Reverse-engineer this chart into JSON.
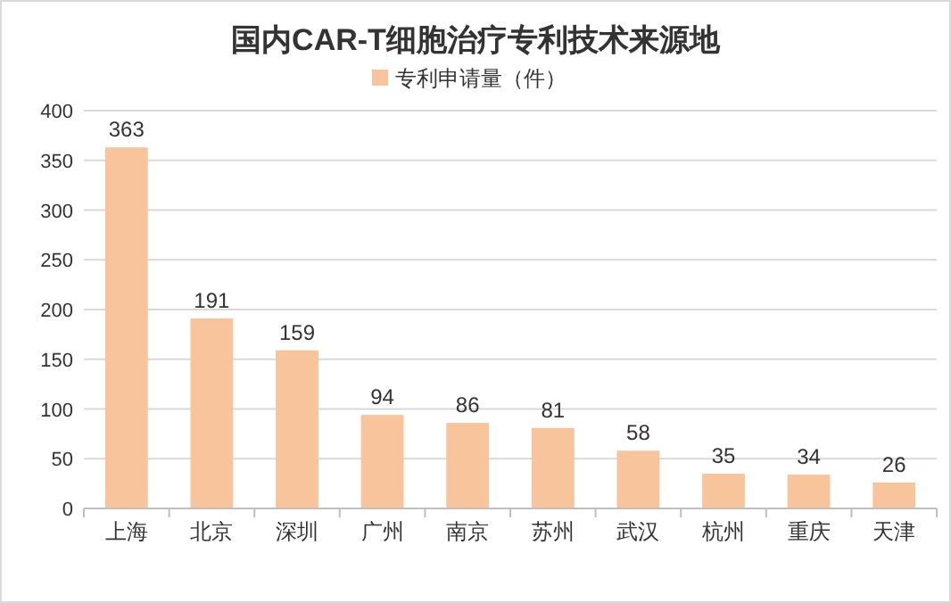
{
  "chart_data": {
    "type": "bar",
    "title": "国内CAR-T细胞治疗专利技术来源地",
    "categories": [
      "上海",
      "北京",
      "深圳",
      "广州",
      "南京",
      "苏州",
      "武汉",
      "杭州",
      "重庆",
      "天津"
    ],
    "series": [
      {
        "name": "专利申请量（件）",
        "color": "#f8c49c",
        "values": [
          363,
          191,
          159,
          94,
          86,
          81,
          58,
          35,
          34,
          26
        ]
      }
    ],
    "ylim": [
      0,
      400
    ],
    "yticks": [
      0,
      50,
      100,
      150,
      200,
      250,
      300,
      350,
      400
    ],
    "grid": "y",
    "legend": "top",
    "data_labels": true
  }
}
